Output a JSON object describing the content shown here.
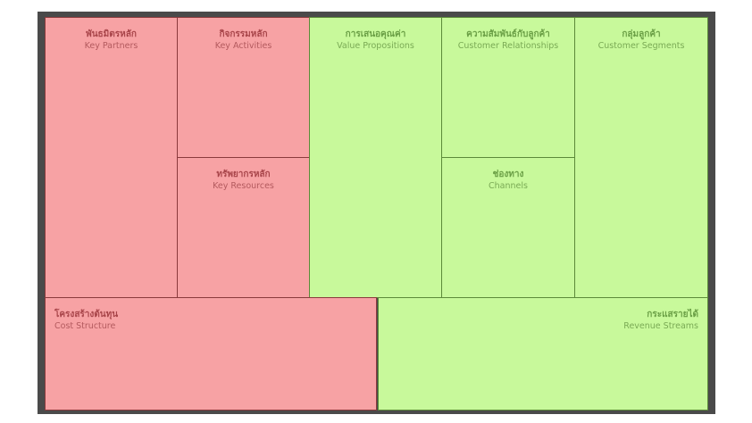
{
  "colors": {
    "cost_side": "#f7a2a4",
    "value_side": "#c8f99b",
    "frame": "#4a4a4a"
  },
  "blocks": {
    "key_partners": {
      "th": "พันธมิตรหลัก",
      "en": "Key Partners"
    },
    "key_activities": {
      "th": "กิจกรรมหลัก",
      "en": "Key Activities"
    },
    "key_resources": {
      "th": "ทรัพยากรหลัก",
      "en": "Key Resources"
    },
    "value_propositions": {
      "th": "การเสนอคุณค่า",
      "en": "Value Propositions"
    },
    "customer_relationships": {
      "th": "ความสัมพันธ์กับลูกค้า",
      "en": "Customer Relationships"
    },
    "channels": {
      "th": "ช่องทาง",
      "en": "Channels"
    },
    "customer_segments": {
      "th": "กลุ่มลูกค้า",
      "en": "Customer Segments"
    },
    "cost_structure": {
      "th": "โครงสร้างต้นทุน",
      "en": "Cost Structure"
    },
    "revenue_streams": {
      "th": "กระแสรายได้",
      "en": "Revenue Streams"
    }
  }
}
